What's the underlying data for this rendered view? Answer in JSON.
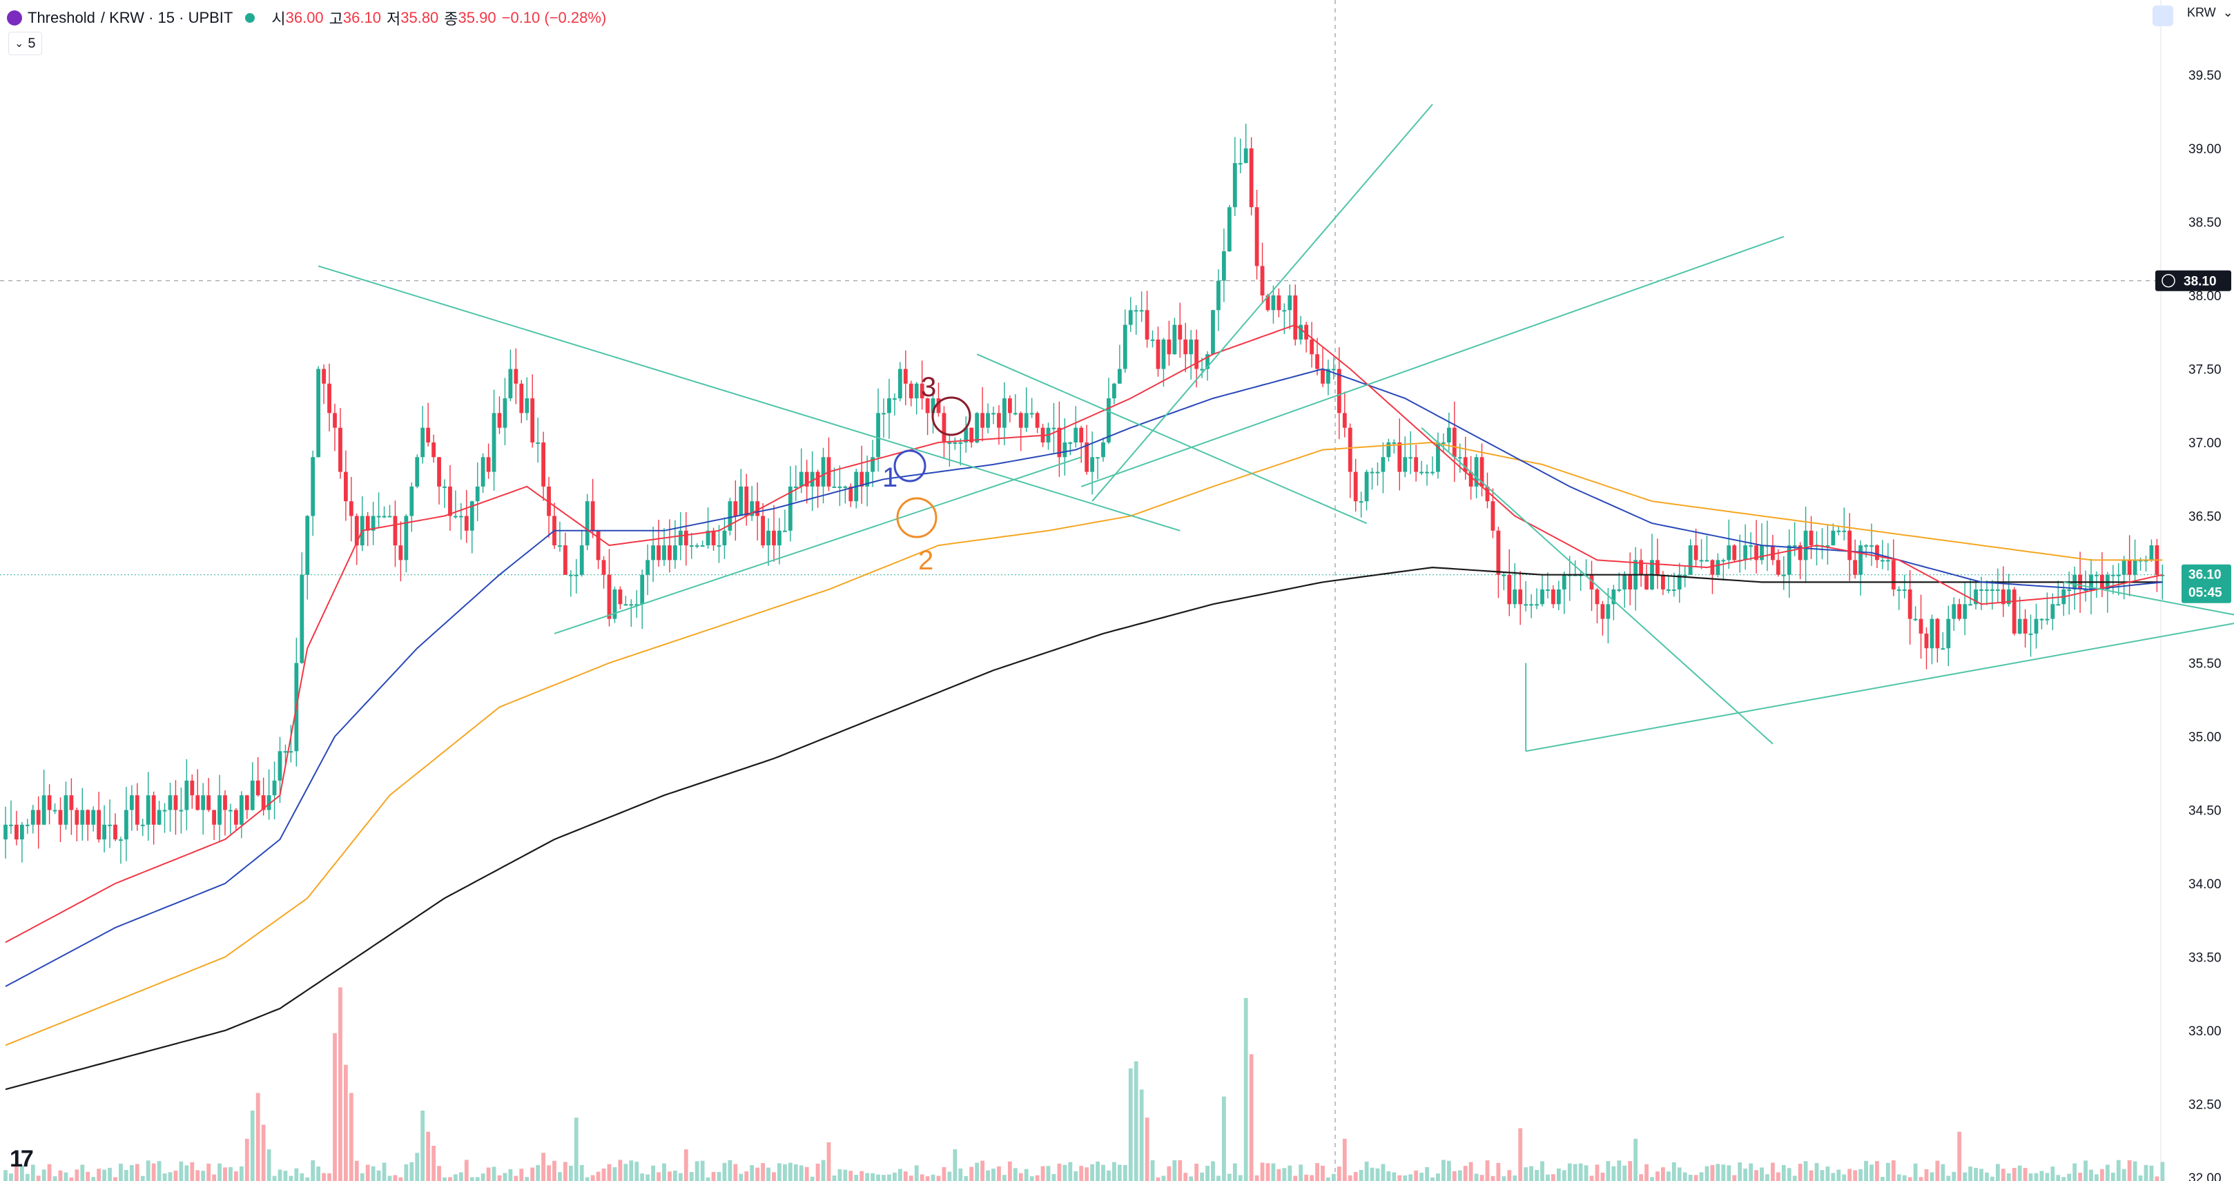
{
  "header": {
    "symbol_name": "Threshold",
    "pair_info": "/ KRW · 15 · UPBIT",
    "open_label": "시",
    "open_value": "36.00",
    "high_label": "고",
    "high_value": "36.10",
    "low_label": "저",
    "low_value": "35.80",
    "close_label": "종",
    "close_value": "35.90",
    "change": "−0.10 (−0.28%)",
    "indicator_toggle": "5"
  },
  "top_right": {
    "currency_select": "KRW"
  },
  "crosshair_price": "38.10",
  "last_price": {
    "price": "36.10",
    "countdown": "05:45"
  },
  "annotations": [
    {
      "text": "1",
      "color": "#3d4ec4"
    },
    {
      "text": "2",
      "color": "#f28c28"
    },
    {
      "text": "3",
      "color": "#8a1c2b"
    }
  ],
  "colors": {
    "up": "#22ab94",
    "down": "#f23645",
    "vol_up": "#9ed9cd",
    "vol_down": "#f9a9ae",
    "ma_red": "#f23645",
    "ma_blue": "#2948b8",
    "ma_orange": "#f5a623",
    "ma_black": "#1a1a1a",
    "trendline": "#4fc4a8"
  },
  "chart_data": {
    "type": "candlestick",
    "title": "Threshold / KRW · 15 · UPBIT",
    "ylim": [
      32.0,
      39.7
    ],
    "y_ticks": [
      "39.50",
      "39.00",
      "38.50",
      "38.00",
      "37.50",
      "37.00",
      "36.50",
      "36.00",
      "35.50",
      "35.00",
      "34.50",
      "34.00",
      "33.50",
      "33.00",
      "32.50",
      "32.00"
    ],
    "grid": false,
    "price_path": [
      [
        0,
        34.4
      ],
      [
        10,
        34.5
      ],
      [
        20,
        34.4
      ],
      [
        28,
        34.5
      ],
      [
        34,
        34.6
      ],
      [
        40,
        34.5
      ],
      [
        48,
        34.6
      ],
      [
        52,
        35.0
      ],
      [
        54,
        36.1
      ],
      [
        57,
        37.5
      ],
      [
        60,
        37.0
      ],
      [
        64,
        36.3
      ],
      [
        68,
        36.6
      ],
      [
        72,
        36.3
      ],
      [
        76,
        37.0
      ],
      [
        79,
        36.7
      ],
      [
        84,
        36.5
      ],
      [
        88,
        36.9
      ],
      [
        92,
        37.5
      ],
      [
        97,
        36.9
      ],
      [
        102,
        36.0
      ],
      [
        106,
        36.5
      ],
      [
        110,
        35.9
      ],
      [
        116,
        36.1
      ],
      [
        122,
        36.4
      ],
      [
        128,
        36.3
      ],
      [
        134,
        36.7
      ],
      [
        140,
        36.3
      ],
      [
        146,
        36.8
      ],
      [
        152,
        36.8
      ],
      [
        156,
        36.7
      ],
      [
        162,
        37.4
      ],
      [
        168,
        37.2
      ],
      [
        174,
        36.9
      ],
      [
        180,
        37.2
      ],
      [
        186,
        37.1
      ],
      [
        192,
        37.0
      ],
      [
        198,
        36.9
      ],
      [
        200,
        37.1
      ],
      [
        203,
        37.6
      ],
      [
        206,
        38.0
      ],
      [
        210,
        37.6
      ],
      [
        214,
        37.7
      ],
      [
        218,
        37.5
      ],
      [
        220,
        37.8
      ],
      [
        222,
        38.4
      ],
      [
        224,
        38.9
      ],
      [
        226,
        39.0
      ],
      [
        228,
        38.2
      ],
      [
        232,
        37.9
      ],
      [
        236,
        37.8
      ],
      [
        240,
        37.5
      ],
      [
        243,
        37.3
      ],
      [
        246,
        36.6
      ],
      [
        250,
        36.9
      ],
      [
        256,
        36.8
      ],
      [
        262,
        37.0
      ],
      [
        268,
        36.8
      ],
      [
        272,
        36.2
      ],
      [
        276,
        35.8
      ],
      [
        280,
        36.0
      ],
      [
        286,
        36.1
      ],
      [
        292,
        35.9
      ],
      [
        298,
        36.1
      ],
      [
        304,
        36.1
      ],
      [
        310,
        36.2
      ],
      [
        316,
        36.3
      ],
      [
        322,
        36.2
      ],
      [
        328,
        36.4
      ],
      [
        334,
        36.3
      ],
      [
        340,
        36.2
      ],
      [
        344,
        36.1
      ],
      [
        348,
        35.8
      ],
      [
        352,
        35.6
      ],
      [
        356,
        35.9
      ],
      [
        360,
        36.1
      ],
      [
        364,
        35.9
      ],
      [
        368,
        35.8
      ],
      [
        372,
        35.9
      ],
      [
        376,
        36.0
      ],
      [
        380,
        36.0
      ],
      [
        384,
        36.1
      ],
      [
        388,
        36.2
      ],
      [
        391,
        36.2
      ],
      [
        393,
        36.1
      ]
    ],
    "ma_fast_red": [
      [
        0,
        33.6
      ],
      [
        20,
        34.0
      ],
      [
        40,
        34.3
      ],
      [
        50,
        34.6
      ],
      [
        55,
        35.6
      ],
      [
        65,
        36.4
      ],
      [
        80,
        36.5
      ],
      [
        95,
        36.7
      ],
      [
        110,
        36.3
      ],
      [
        130,
        36.4
      ],
      [
        150,
        36.8
      ],
      [
        170,
        37.0
      ],
      [
        190,
        37.05
      ],
      [
        205,
        37.3
      ],
      [
        220,
        37.6
      ],
      [
        235,
        37.8
      ],
      [
        245,
        37.5
      ],
      [
        260,
        37.0
      ],
      [
        275,
        36.5
      ],
      [
        290,
        36.2
      ],
      [
        310,
        36.15
      ],
      [
        330,
        36.3
      ],
      [
        345,
        36.2
      ],
      [
        360,
        35.9
      ],
      [
        375,
        35.95
      ],
      [
        393,
        36.1
      ]
    ],
    "ma_mid_blue": [
      [
        0,
        33.3
      ],
      [
        20,
        33.7
      ],
      [
        40,
        34.0
      ],
      [
        50,
        34.3
      ],
      [
        60,
        35.0
      ],
      [
        75,
        35.6
      ],
      [
        90,
        36.1
      ],
      [
        100,
        36.4
      ],
      [
        120,
        36.4
      ],
      [
        140,
        36.55
      ],
      [
        160,
        36.75
      ],
      [
        180,
        36.85
      ],
      [
        195,
        36.95
      ],
      [
        205,
        37.1
      ],
      [
        220,
        37.3
      ],
      [
        240,
        37.5
      ],
      [
        255,
        37.3
      ],
      [
        270,
        37.0
      ],
      [
        285,
        36.7
      ],
      [
        300,
        36.45
      ],
      [
        320,
        36.3
      ],
      [
        340,
        36.25
      ],
      [
        360,
        36.05
      ],
      [
        380,
        36.0
      ],
      [
        393,
        36.05
      ]
    ],
    "ma_slow_orange": [
      [
        0,
        32.9
      ],
      [
        20,
        33.2
      ],
      [
        40,
        33.5
      ],
      [
        55,
        33.9
      ],
      [
        70,
        34.6
      ],
      [
        90,
        35.2
      ],
      [
        110,
        35.5
      ],
      [
        130,
        35.75
      ],
      [
        150,
        36.0
      ],
      [
        170,
        36.3
      ],
      [
        190,
        36.4
      ],
      [
        205,
        36.5
      ],
      [
        220,
        36.7
      ],
      [
        240,
        36.95
      ],
      [
        260,
        37.0
      ],
      [
        280,
        36.85
      ],
      [
        300,
        36.6
      ],
      [
        320,
        36.5
      ],
      [
        340,
        36.4
      ],
      [
        360,
        36.3
      ],
      [
        380,
        36.2
      ],
      [
        393,
        36.2
      ]
    ],
    "ma_long_black": [
      [
        0,
        32.6
      ],
      [
        20,
        32.8
      ],
      [
        40,
        33.0
      ],
      [
        50,
        33.15
      ],
      [
        60,
        33.4
      ],
      [
        80,
        33.9
      ],
      [
        100,
        34.3
      ],
      [
        120,
        34.6
      ],
      [
        140,
        34.85
      ],
      [
        160,
        35.15
      ],
      [
        180,
        35.45
      ],
      [
        200,
        35.7
      ],
      [
        220,
        35.9
      ],
      [
        240,
        36.05
      ],
      [
        260,
        36.15
      ],
      [
        280,
        36.1
      ],
      [
        300,
        36.1
      ],
      [
        320,
        36.05
      ],
      [
        340,
        36.05
      ],
      [
        360,
        36.05
      ],
      [
        380,
        36.05
      ],
      [
        393,
        36.05
      ]
    ],
    "volume_spikes": [
      [
        44,
        12
      ],
      [
        45,
        20
      ],
      [
        46,
        25
      ],
      [
        47,
        16
      ],
      [
        48,
        9
      ],
      [
        60,
        42
      ],
      [
        61,
        55
      ],
      [
        62,
        33
      ],
      [
        63,
        25
      ],
      [
        75,
        8
      ],
      [
        76,
        20
      ],
      [
        77,
        14
      ],
      [
        78,
        10
      ],
      [
        98,
        8
      ],
      [
        104,
        18
      ],
      [
        112,
        6
      ],
      [
        124,
        9
      ],
      [
        150,
        11
      ],
      [
        173,
        9
      ],
      [
        205,
        32
      ],
      [
        206,
        34
      ],
      [
        207,
        26
      ],
      [
        208,
        18
      ],
      [
        222,
        24
      ],
      [
        226,
        52
      ],
      [
        227,
        36
      ],
      [
        244,
        12
      ],
      [
        262,
        6
      ],
      [
        276,
        15
      ],
      [
        297,
        12
      ],
      [
        356,
        14
      ],
      [
        377,
        5
      ]
    ],
    "trendlines": [
      {
        "x0": 57,
        "y0": 38.2,
        "x1": 214,
        "y1": 36.4
      },
      {
        "x0": 100,
        "y0": 35.7,
        "x1": 196,
        "y1": 36.9
      },
      {
        "x0": 177,
        "y0": 37.6,
        "x1": 248,
        "y1": 36.45
      },
      {
        "x0": 198,
        "y0": 36.6,
        "x1": 260,
        "y1": 39.3
      },
      {
        "x0": 196,
        "y0": 36.7,
        "x1": 324,
        "y1": 38.4
      },
      {
        "x0": 258,
        "y0": 37.1,
        "x1": 322,
        "y1": 34.95
      },
      {
        "x0": 277,
        "y0": 35.5,
        "x1": 277,
        "y1": 34.9
      },
      {
        "x0": 277,
        "y0": 34.9,
        "x1": 470,
        "y1": 36.2
      },
      {
        "x0": 375,
        "y0": 36.05,
        "x1": 438,
        "y1": 35.6
      }
    ]
  }
}
